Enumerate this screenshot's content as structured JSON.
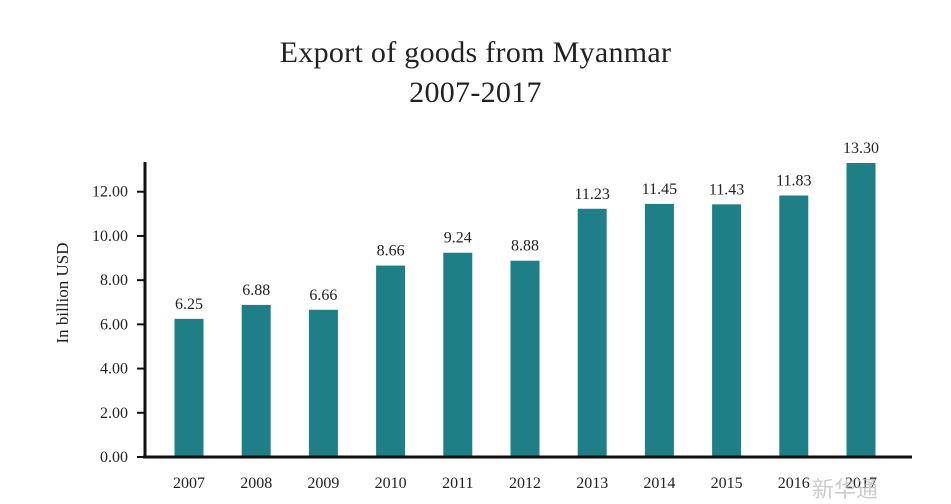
{
  "chart_data": {
    "type": "bar",
    "title": "Export of goods from Myanmar",
    "subtitle": "2007-2017",
    "xlabel": "",
    "ylabel": "In billion USD",
    "categories": [
      "2007",
      "2008",
      "2009",
      "2010",
      "2011",
      "2012",
      "2013",
      "2014",
      "2015",
      "2016",
      "2017"
    ],
    "values": [
      6.25,
      6.88,
      6.66,
      8.66,
      9.24,
      8.88,
      11.23,
      11.45,
      11.43,
      11.83,
      13.3
    ],
    "data_labels": [
      "6.25",
      "6.88",
      "6.66",
      "8.66",
      "9.24",
      "8.88",
      "11.23",
      "11.45",
      "11.43",
      "11.83",
      "13.30"
    ],
    "ylim": [
      0,
      13.3
    ],
    "yticks": [
      0,
      2,
      4,
      6,
      8,
      10,
      12
    ],
    "ytick_labels": [
      "0.00",
      "2.00",
      "4.00",
      "6.00",
      "8.00",
      "10.00",
      "12.00"
    ],
    "grid": false,
    "legend": "none",
    "bar_color": "#1f7f86"
  },
  "watermark": "新华通"
}
